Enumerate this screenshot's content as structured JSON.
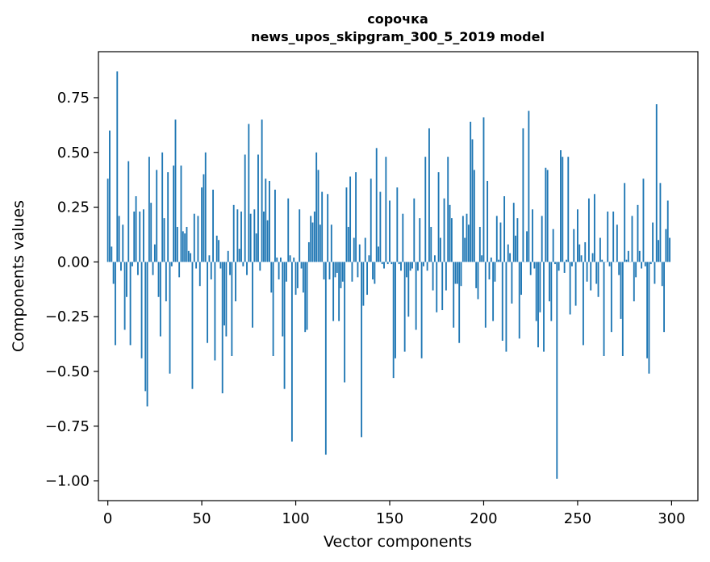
{
  "chart_data": {
    "type": "bar",
    "title_line1": "сорочка",
    "title_line2": "news_upos_skipgram_300_5_2019 model",
    "xlabel": "Vector components",
    "ylabel": "Components values",
    "xlim": [
      -5,
      314
    ],
    "ylim": [
      -1.09,
      0.96
    ],
    "xticks": [
      0,
      50,
      100,
      150,
      200,
      250,
      300
    ],
    "xtick_labels": [
      "0",
      "50",
      "100",
      "150",
      "200",
      "250",
      "300"
    ],
    "yticks": [
      0.75,
      0.5,
      0.25,
      0.0,
      -0.25,
      -0.5,
      -0.75,
      -1.0
    ],
    "ytick_labels": [
      "0.75",
      "0.50",
      "0.25",
      "0.00",
      "−0.25",
      "−0.50",
      "−0.75",
      "−1.00"
    ],
    "color": "#1f77b4",
    "values": [
      0.38,
      0.6,
      0.07,
      -0.1,
      -0.38,
      0.87,
      0.21,
      -0.04,
      0.17,
      -0.31,
      -0.16,
      0.46,
      -0.38,
      -0.02,
      0.23,
      0.3,
      -0.06,
      0.23,
      -0.44,
      0.24,
      -0.59,
      -0.66,
      0.48,
      0.27,
      -0.06,
      0.08,
      0.42,
      -0.16,
      -0.34,
      0.5,
      0.2,
      -0.18,
      0.41,
      -0.51,
      -0.02,
      0.44,
      0.65,
      0.16,
      -0.07,
      0.44,
      0.14,
      0.13,
      0.16,
      0.05,
      0.04,
      -0.58,
      0.22,
      -0.03,
      0.21,
      -0.11,
      0.34,
      0.4,
      0.5,
      -0.37,
      0.03,
      -0.08,
      0.33,
      -0.45,
      0.12,
      0.1,
      -0.03,
      -0.6,
      -0.29,
      -0.34,
      0.05,
      -0.06,
      -0.43,
      0.26,
      -0.18,
      0.24,
      0.06,
      0.23,
      -0.02,
      0.49,
      -0.06,
      0.63,
      0.22,
      -0.3,
      0.24,
      0.13,
      0.49,
      -0.04,
      0.65,
      0.23,
      0.38,
      0.19,
      0.37,
      -0.14,
      -0.43,
      0.33,
      0.02,
      -0.08,
      0.02,
      -0.34,
      -0.58,
      -0.09,
      0.29,
      0.03,
      -0.82,
      0.02,
      -0.15,
      -0.12,
      0.24,
      -0.03,
      -0.14,
      -0.32,
      -0.31,
      0.09,
      0.21,
      0.18,
      0.23,
      0.5,
      0.42,
      0.17,
      0.32,
      -0.08,
      -0.88,
      0.31,
      -0.08,
      0.17,
      -0.27,
      -0.07,
      -0.05,
      -0.27,
      -0.12,
      -0.09,
      -0.55,
      0.34,
      0.16,
      0.39,
      -0.09,
      0.11,
      0.41,
      -0.07,
      0.08,
      -0.8,
      -0.2,
      0.11,
      -0.15,
      0.03,
      0.38,
      -0.08,
      -0.1,
      0.52,
      0.07,
      0.32,
      -0.01,
      -0.03,
      0.48,
      -0.01,
      0.28,
      -0.01,
      -0.53,
      -0.44,
      0.34,
      -0.01,
      -0.04,
      0.22,
      -0.41,
      -0.07,
      -0.25,
      -0.04,
      -0.03,
      0.29,
      -0.31,
      -0.04,
      0.2,
      -0.44,
      -0.02,
      0.48,
      -0.04,
      0.61,
      0.16,
      -0.13,
      0.03,
      -0.23,
      0.41,
      0.11,
      -0.22,
      0.29,
      -0.13,
      0.48,
      0.26,
      0.2,
      -0.3,
      -0.1,
      -0.1,
      -0.37,
      -0.11,
      0.21,
      0.11,
      0.22,
      0.17,
      0.64,
      0.56,
      0.42,
      -0.12,
      -0.17,
      0.16,
      0.03,
      0.66,
      -0.3,
      0.37,
      -0.08,
      0.02,
      -0.27,
      -0.09,
      0.21,
      0.01,
      0.18,
      -0.36,
      0.3,
      -0.41,
      0.08,
      0.04,
      -0.19,
      0.27,
      0.12,
      0.2,
      -0.35,
      -0.15,
      0.61,
      0.0,
      0.14,
      0.69,
      -0.06,
      0.24,
      -0.03,
      -0.27,
      -0.39,
      -0.23,
      0.21,
      -0.41,
      0.43,
      0.42,
      -0.18,
      -0.27,
      0.15,
      -0.01,
      -0.99,
      -0.04,
      0.51,
      0.48,
      -0.05,
      0.01,
      0.48,
      -0.24,
      -0.02,
      0.15,
      -0.2,
      0.24,
      0.08,
      0.03,
      -0.38,
      0.09,
      -0.09,
      0.29,
      -0.13,
      0.04,
      0.31,
      -0.1,
      -0.16,
      0.11,
      0.01,
      -0.43,
      0.0,
      0.23,
      -0.02,
      -0.32,
      0.23,
      0.0,
      0.17,
      -0.06,
      -0.26,
      -0.43,
      0.36,
      0.01,
      0.05,
      0.0,
      0.21,
      -0.18,
      -0.07,
      0.26,
      0.05,
      -0.03,
      0.38,
      -0.02,
      -0.44,
      -0.51,
      -0.01,
      0.18,
      -0.1,
      0.72,
      0.1,
      0.36,
      -0.11,
      -0.32,
      0.15,
      0.28,
      0.11
    ]
  }
}
